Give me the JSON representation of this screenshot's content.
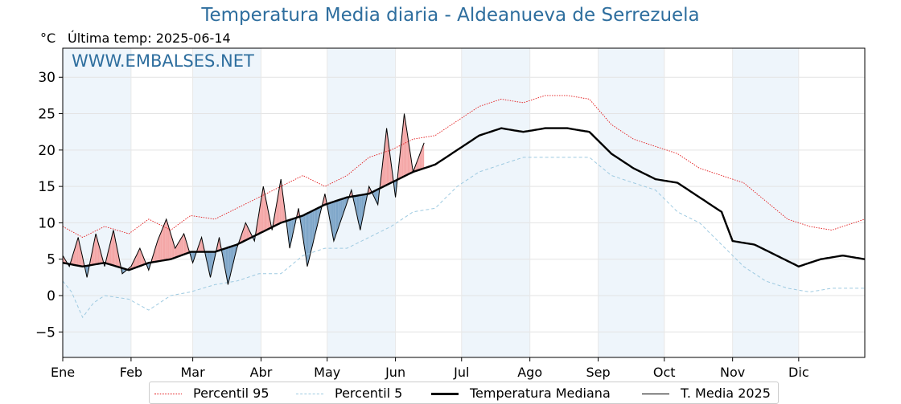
{
  "title": "Temperatura Media diaria - Aldeanueva de Serrezuela",
  "unit_label": "°C",
  "last_temp_label": "Última temp: 2025-06-14",
  "watermark": "WWW.EMBALSES.NET",
  "colors": {
    "title": "#2e6e9e",
    "p95": "#e31a1c",
    "p5": "#9ecae1",
    "median": "#000000",
    "current": "#000000",
    "above_fill": "#f4a6a6",
    "below_fill": "#7ea6c9",
    "month_band": "#eef5fb"
  },
  "chart_data": {
    "type": "line",
    "title": "Temperatura Media diaria - Aldeanueva de Serrezuela",
    "ylabel": "°C",
    "ylim": [
      -8.5,
      34
    ],
    "yticks": [
      -5,
      0,
      5,
      10,
      15,
      20,
      25,
      30
    ],
    "xlim": [
      1,
      365
    ],
    "month_labels": [
      "Ene",
      "Feb",
      "Mar",
      "Abr",
      "May",
      "Jun",
      "Jul",
      "Ago",
      "Sep",
      "Oct",
      "Nov",
      "Dic"
    ],
    "month_start_days": [
      1,
      32,
      60,
      91,
      121,
      152,
      182,
      213,
      244,
      274,
      305,
      335
    ],
    "grid": true,
    "legend_position": "bottom-center",
    "series": [
      {
        "name": "Percentil 95",
        "style": "dotted",
        "x": [
          1,
          10,
          20,
          31,
          40,
          50,
          59,
          70,
          80,
          90,
          100,
          110,
          120,
          130,
          140,
          150,
          160,
          170,
          180,
          190,
          200,
          210,
          220,
          230,
          240,
          250,
          260,
          270,
          280,
          290,
          300,
          310,
          320,
          330,
          340,
          350,
          365
        ],
        "values": [
          9.5,
          8.0,
          9.5,
          8.5,
          10.5,
          9.0,
          11.0,
          10.5,
          12.0,
          13.5,
          15.0,
          16.5,
          15.0,
          16.5,
          19.0,
          20.0,
          21.5,
          22.0,
          24.0,
          26.0,
          27.0,
          26.5,
          27.5,
          27.5,
          27.0,
          23.5,
          21.5,
          20.5,
          19.5,
          17.5,
          16.5,
          15.5,
          13.0,
          10.5,
          9.5,
          9.0,
          10.5
        ]
      },
      {
        "name": "Percentil 5",
        "style": "dashed",
        "x": [
          1,
          5,
          10,
          15,
          20,
          31,
          40,
          50,
          59,
          70,
          80,
          90,
          100,
          110,
          120,
          130,
          140,
          150,
          160,
          170,
          180,
          190,
          200,
          210,
          220,
          230,
          240,
          250,
          260,
          270,
          280,
          290,
          300,
          310,
          320,
          330,
          340,
          350,
          365
        ],
        "values": [
          2.0,
          0.5,
          -3.0,
          -1.0,
          0.0,
          -0.5,
          -2.0,
          0.0,
          0.5,
          1.5,
          2.0,
          3.0,
          3.0,
          5.5,
          6.5,
          6.5,
          8.0,
          9.5,
          11.5,
          12.0,
          15.0,
          17.0,
          18.0,
          19.0,
          19.0,
          19.0,
          19.0,
          16.5,
          15.5,
          14.5,
          11.5,
          10.0,
          7.0,
          4.0,
          2.0,
          1.0,
          0.5,
          1.0,
          1.0
        ]
      },
      {
        "name": "Temperatura Mediana",
        "style": "solid-thick",
        "x": [
          1,
          10,
          20,
          31,
          40,
          50,
          59,
          70,
          80,
          90,
          100,
          110,
          120,
          130,
          140,
          150,
          160,
          170,
          180,
          190,
          200,
          210,
          220,
          230,
          240,
          250,
          260,
          270,
          280,
          290,
          300,
          305,
          315,
          325,
          335,
          345,
          355,
          365
        ],
        "values": [
          4.5,
          4.0,
          4.5,
          3.5,
          4.5,
          5.0,
          6.0,
          6.0,
          7.0,
          8.5,
          10.0,
          11.0,
          12.5,
          13.5,
          14.0,
          15.5,
          17.0,
          18.0,
          20.0,
          22.0,
          23.0,
          22.5,
          23.0,
          23.0,
          22.5,
          19.5,
          17.5,
          16.0,
          15.5,
          13.5,
          11.5,
          7.5,
          7.0,
          5.5,
          4.0,
          5.0,
          5.5,
          5.0
        ]
      },
      {
        "name": "T. Media 2025",
        "style": "solid-thin",
        "x": [
          1,
          4,
          8,
          12,
          16,
          20,
          24,
          28,
          32,
          36,
          40,
          44,
          48,
          52,
          56,
          60,
          64,
          68,
          72,
          76,
          80,
          84,
          88,
          92,
          96,
          100,
          104,
          108,
          112,
          116,
          120,
          124,
          128,
          132,
          136,
          140,
          144,
          148,
          152,
          156,
          160,
          165
        ],
        "values": [
          5.5,
          4.0,
          8.0,
          2.5,
          8.5,
          4.0,
          9.0,
          3.0,
          4.0,
          6.5,
          3.5,
          7.5,
          10.5,
          6.5,
          8.5,
          4.5,
          8.0,
          2.5,
          8.0,
          1.5,
          6.5,
          10.0,
          7.5,
          15.0,
          9.0,
          16.0,
          6.5,
          12.0,
          4.0,
          9.0,
          14.0,
          7.5,
          11.0,
          14.5,
          9.0,
          15.0,
          12.5,
          23.0,
          13.5,
          25.0,
          17.0,
          21.0
        ]
      }
    ]
  },
  "legend": {
    "items": [
      {
        "label": "Percentil 95"
      },
      {
        "label": "Percentil 5"
      },
      {
        "label": "Temperatura Mediana"
      },
      {
        "label": "T. Media 2025"
      }
    ]
  }
}
